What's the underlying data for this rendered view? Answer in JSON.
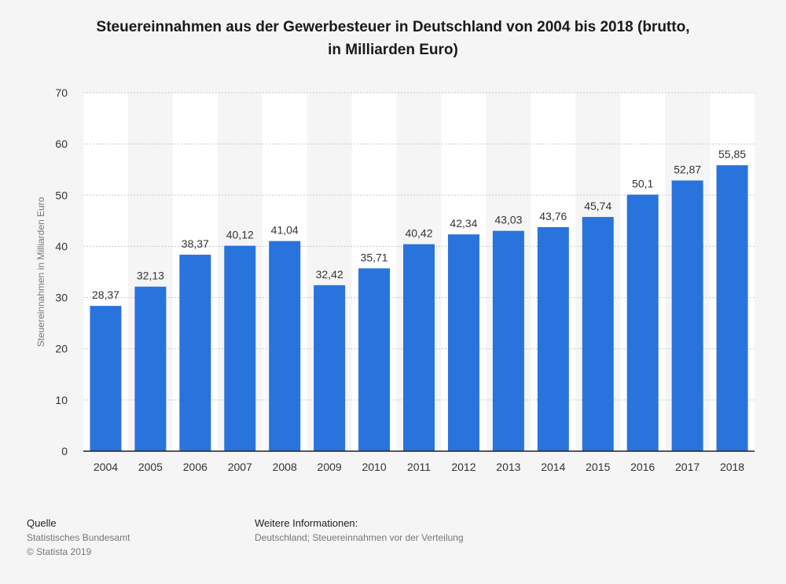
{
  "chart_title_line1": "Steuereinnahmen aus der Gewerbesteuer in Deutschland von 2004 bis 2018 (brutto,",
  "chart_title_line2": "in Milliarden Euro)",
  "footer": {
    "source_heading": "Quelle",
    "source_name": "Statistisches Bundesamt",
    "copyright": "© Statista 2019",
    "info_heading": "Weitere Informationen:",
    "info_text": "Deutschland; Steuereinnahmen vor der Verteilung"
  },
  "chart_data": {
    "type": "bar",
    "title": "Steuereinnahmen aus der Gewerbesteuer in Deutschland von 2004 bis 2018 (brutto, in Milliarden Euro)",
    "xlabel": "",
    "ylabel": "Steuereinnahmen in Milliarden Euro",
    "ylim": [
      0,
      70
    ],
    "yticks": [
      0,
      10,
      20,
      30,
      40,
      50,
      60,
      70
    ],
    "grid": true,
    "categories": [
      "2004",
      "2005",
      "2006",
      "2007",
      "2008",
      "2009",
      "2010",
      "2011",
      "2012",
      "2013",
      "2014",
      "2015",
      "2016",
      "2017",
      "2018"
    ],
    "values": [
      28.37,
      32.13,
      38.37,
      40.12,
      41.04,
      32.42,
      35.71,
      40.42,
      42.34,
      43.03,
      43.76,
      45.74,
      50.1,
      52.87,
      55.85
    ],
    "value_labels": [
      "28,37",
      "32,13",
      "38,37",
      "40,12",
      "41,04",
      "32,42",
      "35,71",
      "40,42",
      "42,34",
      "43,03",
      "43,76",
      "45,74",
      "50,1",
      "52,87",
      "55,85"
    ],
    "bar_color": "#2874dc",
    "band_color": "#ffffff",
    "grid_color": "#c8c8c8"
  }
}
